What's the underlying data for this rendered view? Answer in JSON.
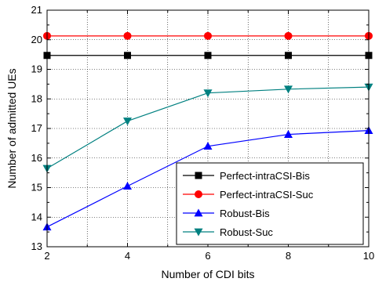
{
  "chart_data": {
    "type": "line",
    "xlabel": "Number of CDI bits",
    "ylabel": "Number of admitted UEs",
    "xlim": [
      2,
      10
    ],
    "ylim": [
      13,
      21
    ],
    "x_ticks": [
      2,
      4,
      6,
      8,
      10
    ],
    "y_ticks": [
      13,
      14,
      15,
      16,
      17,
      18,
      19,
      20,
      21
    ],
    "grid": true,
    "legend_position": "lower-right",
    "x": [
      2,
      4,
      6,
      8,
      10
    ],
    "series": [
      {
        "name": "Perfect-intraCSI-Bis",
        "values": [
          19.47,
          19.47,
          19.47,
          19.47,
          19.47
        ],
        "color": "#000000",
        "marker": "square"
      },
      {
        "name": "Perfect-intraCSI-Suc",
        "values": [
          20.13,
          20.13,
          20.13,
          20.13,
          20.13
        ],
        "color": "#ff0000",
        "marker": "circle"
      },
      {
        "name": "Robust-Bis",
        "values": [
          13.67,
          15.05,
          16.4,
          16.8,
          16.93
        ],
        "color": "#0000ff",
        "marker": "triangle-up"
      },
      {
        "name": "Robust-Suc",
        "values": [
          15.65,
          17.25,
          18.2,
          18.33,
          18.4
        ],
        "color": "#008080",
        "marker": "triangle-down"
      }
    ]
  }
}
